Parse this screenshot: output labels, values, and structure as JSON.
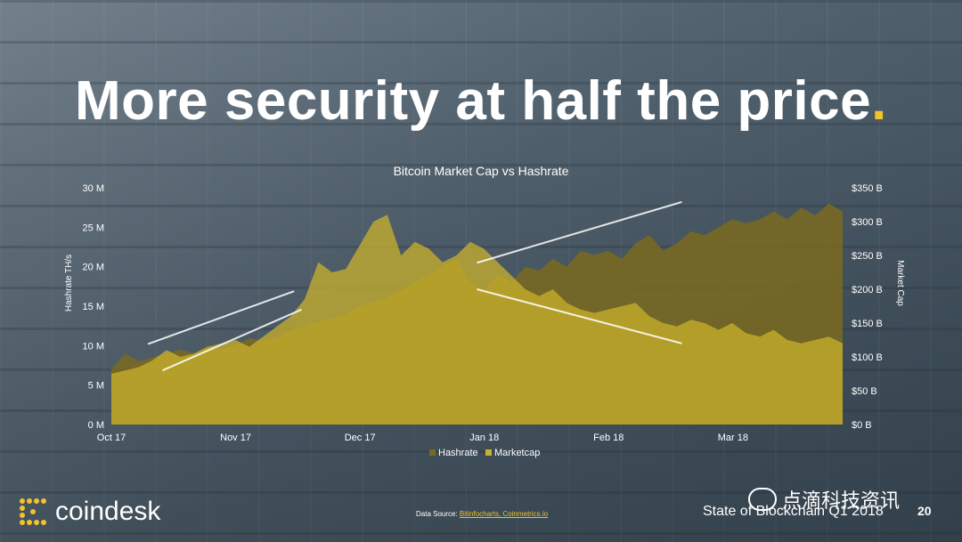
{
  "slide": {
    "title": "More security at half the price",
    "title_dot": ".",
    "footer": "State of Blockchain Q1 2018",
    "page_number": "20",
    "source_label": "Data Source: ",
    "source_links": "Bitinfocharts, Coinmetrics.io",
    "logo_text": "coindesk",
    "watermark": "点滴科技资讯",
    "colors": {
      "accent": "#f2c32a",
      "hashrate": "#7a6a1e",
      "marketcap": "#c9b22b"
    }
  },
  "chart_data": {
    "type": "area",
    "title": "Bitcoin Market Cap vs Hashrate",
    "ylabel_left": "Hashrate TH/s",
    "ylabel_right": "Market Cap",
    "x_labels": [
      "Oct 17",
      "Nov 17",
      "Dec 17",
      "Jan 18",
      "Feb 18",
      "Mar 18"
    ],
    "y_left_ticks": [
      "0 M",
      "5 M",
      "10 M",
      "15 M",
      "20 M",
      "25 M",
      "30 M"
    ],
    "y_left_lim": [
      0,
      30
    ],
    "y_right_ticks": [
      "$0 B",
      "$50 B",
      "$100 B",
      "$150 B",
      "$200 B",
      "$250 B",
      "$300 B",
      "$350 B"
    ],
    "y_right_lim": [
      0,
      350
    ],
    "legend": [
      "Hashrate",
      "Marketcap"
    ],
    "series": [
      {
        "name": "Hashrate",
        "axis": "left",
        "values": [
          7,
          9,
          8,
          8.5,
          9,
          9.5,
          9,
          10,
          9.5,
          10,
          11,
          10.5,
          11,
          12,
          12.5,
          13,
          13.5,
          14,
          15,
          15.5,
          16,
          17,
          18,
          19,
          20,
          21,
          18,
          17,
          19,
          18,
          20,
          19.5,
          21,
          20,
          22,
          21.5,
          22,
          21,
          23,
          24,
          22,
          23,
          24.5,
          24,
          25,
          26,
          25.5,
          26,
          27,
          26,
          27.5,
          26.5,
          28,
          27
        ]
      },
      {
        "name": "Marketcap",
        "axis": "right",
        "values": [
          75,
          80,
          85,
          95,
          110,
          100,
          105,
          115,
          120,
          125,
          115,
          130,
          145,
          160,
          185,
          240,
          225,
          230,
          265,
          300,
          310,
          250,
          270,
          260,
          240,
          250,
          270,
          260,
          240,
          220,
          200,
          190,
          200,
          180,
          170,
          165,
          170,
          175,
          180,
          160,
          150,
          145,
          155,
          150,
          140,
          150,
          135,
          130,
          140,
          125,
          120,
          125,
          130,
          120
        ]
      }
    ],
    "trend_lines": [
      {
        "series": "Hashrate",
        "from": [
          0.05,
          10.2
        ],
        "to": [
          0.25,
          16.9
        ]
      },
      {
        "series": "Marketcap",
        "from": [
          0.07,
          80
        ],
        "to": [
          0.26,
          170
        ]
      },
      {
        "series": "Hashrate",
        "from": [
          0.5,
          20.5
        ],
        "to": [
          0.78,
          28.2
        ]
      },
      {
        "series": "Marketcap",
        "from": [
          0.5,
          200
        ],
        "to": [
          0.78,
          120
        ]
      }
    ]
  }
}
